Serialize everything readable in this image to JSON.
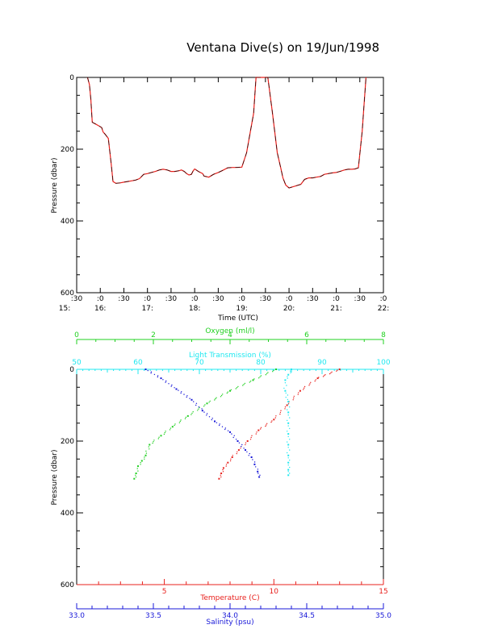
{
  "title": "Ventana Dive(s) on 19/Jun/1998",
  "colors": {
    "black": "#000000",
    "red": "#e8201c",
    "green": "#20d020",
    "cyan": "#20e8f0",
    "blue": "#1818d8"
  },
  "chart_data": [
    {
      "type": "line",
      "ylabel": "Pressure (dbar)",
      "xlabel": "Time (UTC)",
      "ylim": [
        600,
        0
      ],
      "yticks": [
        "0",
        "200",
        "400",
        "600"
      ],
      "xticks_top": [
        ":30",
        ":0",
        ":30",
        ":0",
        ":30",
        ":0",
        ":30",
        ":0",
        ":30",
        ":0",
        ":30",
        ":0",
        ":30",
        ":0"
      ],
      "xticks_bottom": [
        "15:",
        "16:",
        "17:",
        "18:",
        "19:",
        "20:",
        "21:",
        "22:"
      ],
      "xlim_hours": [
        15.5,
        22.0
      ],
      "series": [
        {
          "x": [
            15.73,
            15.77,
            15.8,
            15.83,
            15.9,
            15.97,
            16.03,
            16.06,
            16.1,
            16.17,
            16.23,
            16.27,
            16.33,
            16.42,
            16.5,
            16.58,
            16.67,
            16.75,
            16.83,
            16.92,
            17.0,
            17.08,
            17.17,
            17.25,
            17.33,
            17.42,
            17.5,
            17.58,
            17.67,
            17.72,
            17.78,
            17.83,
            17.88,
            17.93,
            17.97,
            18.0,
            18.08,
            18.17,
            18.2,
            18.3,
            18.4,
            18.5,
            18.58,
            18.7,
            18.8,
            18.88,
            19.0,
            19.1,
            19.25,
            19.3,
            19.43,
            19.55,
            19.65,
            19.75,
            19.83,
            19.87,
            19.93,
            20.0,
            20.05,
            20.15,
            20.25,
            20.33,
            20.42,
            20.5,
            20.58,
            20.67,
            20.75,
            20.83,
            20.92,
            21.0,
            21.08,
            21.17,
            21.25,
            21.33,
            21.4,
            21.47,
            21.55,
            21.63
          ],
          "y": [
            0,
            20,
            60,
            125,
            130,
            135,
            140,
            152,
            158,
            170,
            240,
            290,
            295,
            294,
            292,
            290,
            288,
            286,
            282,
            270,
            268,
            265,
            262,
            258,
            256,
            258,
            262,
            262,
            260,
            258,
            262,
            268,
            272,
            270,
            260,
            255,
            262,
            268,
            275,
            278,
            270,
            265,
            260,
            252,
            251,
            251,
            250,
            210,
            100,
            0,
            0,
            0,
            100,
            210,
            255,
            280,
            300,
            308,
            306,
            302,
            298,
            284,
            280,
            280,
            278,
            276,
            270,
            268,
            266,
            265,
            262,
            258,
            256,
            256,
            255,
            252,
            150,
            0
          ]
        }
      ]
    },
    {
      "type": "scatter",
      "ylabel": "Pressure (dbar)",
      "ylim": [
        600,
        0
      ],
      "yticks": [
        "0",
        "200",
        "400",
        "600"
      ],
      "axes": {
        "oxygen": {
          "label": "Oxygen (ml/l)",
          "range": [
            0,
            8
          ],
          "ticks": [
            "0",
            "2",
            "4",
            "6",
            "8"
          ]
        },
        "light_transmission": {
          "label": "Light Transmission (%)",
          "range": [
            50,
            100
          ],
          "ticks": [
            "50",
            "60",
            "70",
            "80",
            "90",
            "100"
          ]
        },
        "temperature": {
          "label": "Temperature (C)",
          "range": [
            1,
            15
          ],
          "ticks": [
            "5",
            "10",
            "15"
          ]
        },
        "salinity": {
          "label": "Salinity (psu)",
          "range": [
            33.0,
            35.0
          ],
          "ticks": [
            "33.0",
            "33.5",
            "34.0",
            "34.5",
            "35.0"
          ]
        }
      },
      "series": [
        {
          "axis": "temperature",
          "x": [
            13.0,
            12.0,
            11.2,
            10.6,
            10.0,
            9.3,
            8.8,
            8.4,
            8.1,
            7.9,
            7.7,
            7.6,
            7.5
          ],
          "y": [
            0,
            25,
            60,
            100,
            140,
            170,
            200,
            225,
            245,
            260,
            275,
            290,
            305
          ]
        },
        {
          "axis": "oxygen",
          "x": [
            5.2,
            4.6,
            4.0,
            3.4,
            2.9,
            2.5,
            2.2,
            1.9,
            1.8,
            1.7,
            1.6,
            1.55,
            1.5
          ],
          "y": [
            0,
            30,
            60,
            95,
            130,
            160,
            185,
            210,
            240,
            255,
            270,
            290,
            305
          ]
        },
        {
          "axis": "salinity",
          "x": [
            33.45,
            33.55,
            33.65,
            33.75,
            33.82,
            33.9,
            34.0,
            34.05,
            34.1,
            34.14,
            34.16,
            34.18,
            34.19
          ],
          "y": [
            0,
            25,
            55,
            85,
            115,
            145,
            175,
            200,
            225,
            245,
            265,
            285,
            300
          ]
        },
        {
          "axis": "light_transmission",
          "x": [
            85.0,
            84.5,
            84.0,
            84.0,
            84.5,
            84.5,
            84.5,
            84.5,
            84.5,
            84.5,
            84.5,
            84.5,
            84.5
          ],
          "y": [
            0,
            15,
            30,
            60,
            90,
            120,
            150,
            180,
            210,
            240,
            260,
            280,
            295
          ]
        }
      ]
    }
  ]
}
